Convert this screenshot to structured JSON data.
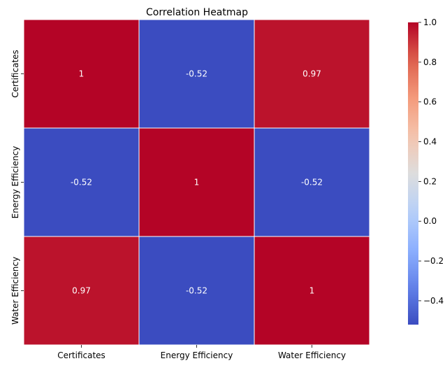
{
  "chart_data": {
    "type": "heatmap",
    "title": "Correlation Heatmap",
    "x_categories": [
      "Certificates",
      "Energy Efficiency",
      "Water Efficiency"
    ],
    "y_categories": [
      "Certificates",
      "Energy Efficiency",
      "Water Efficiency"
    ],
    "values": [
      [
        1,
        -0.52,
        0.97
      ],
      [
        -0.52,
        1,
        -0.52
      ],
      [
        0.97,
        -0.52,
        1
      ]
    ],
    "cell_labels": [
      [
        "1",
        "-0.52",
        "0.97"
      ],
      [
        "-0.52",
        "1",
        "-0.52"
      ],
      [
        "0.97",
        "-0.52",
        "1"
      ]
    ],
    "colormap": "coolwarm",
    "color_range": [
      -0.52,
      1
    ],
    "colorbar_ticks": [
      {
        "value": 1.0,
        "label": "1.0"
      },
      {
        "value": 0.8,
        "label": "0.8"
      },
      {
        "value": 0.6,
        "label": "0.6"
      },
      {
        "value": 0.4,
        "label": "0.4"
      },
      {
        "value": 0.2,
        "label": "0.2"
      },
      {
        "value": 0.0,
        "label": "0.0"
      },
      {
        "value": -0.2,
        "label": "−0.2"
      },
      {
        "value": -0.4,
        "label": "−0.4"
      }
    ],
    "grid": "white cell borders",
    "legend": "colorbar right"
  }
}
